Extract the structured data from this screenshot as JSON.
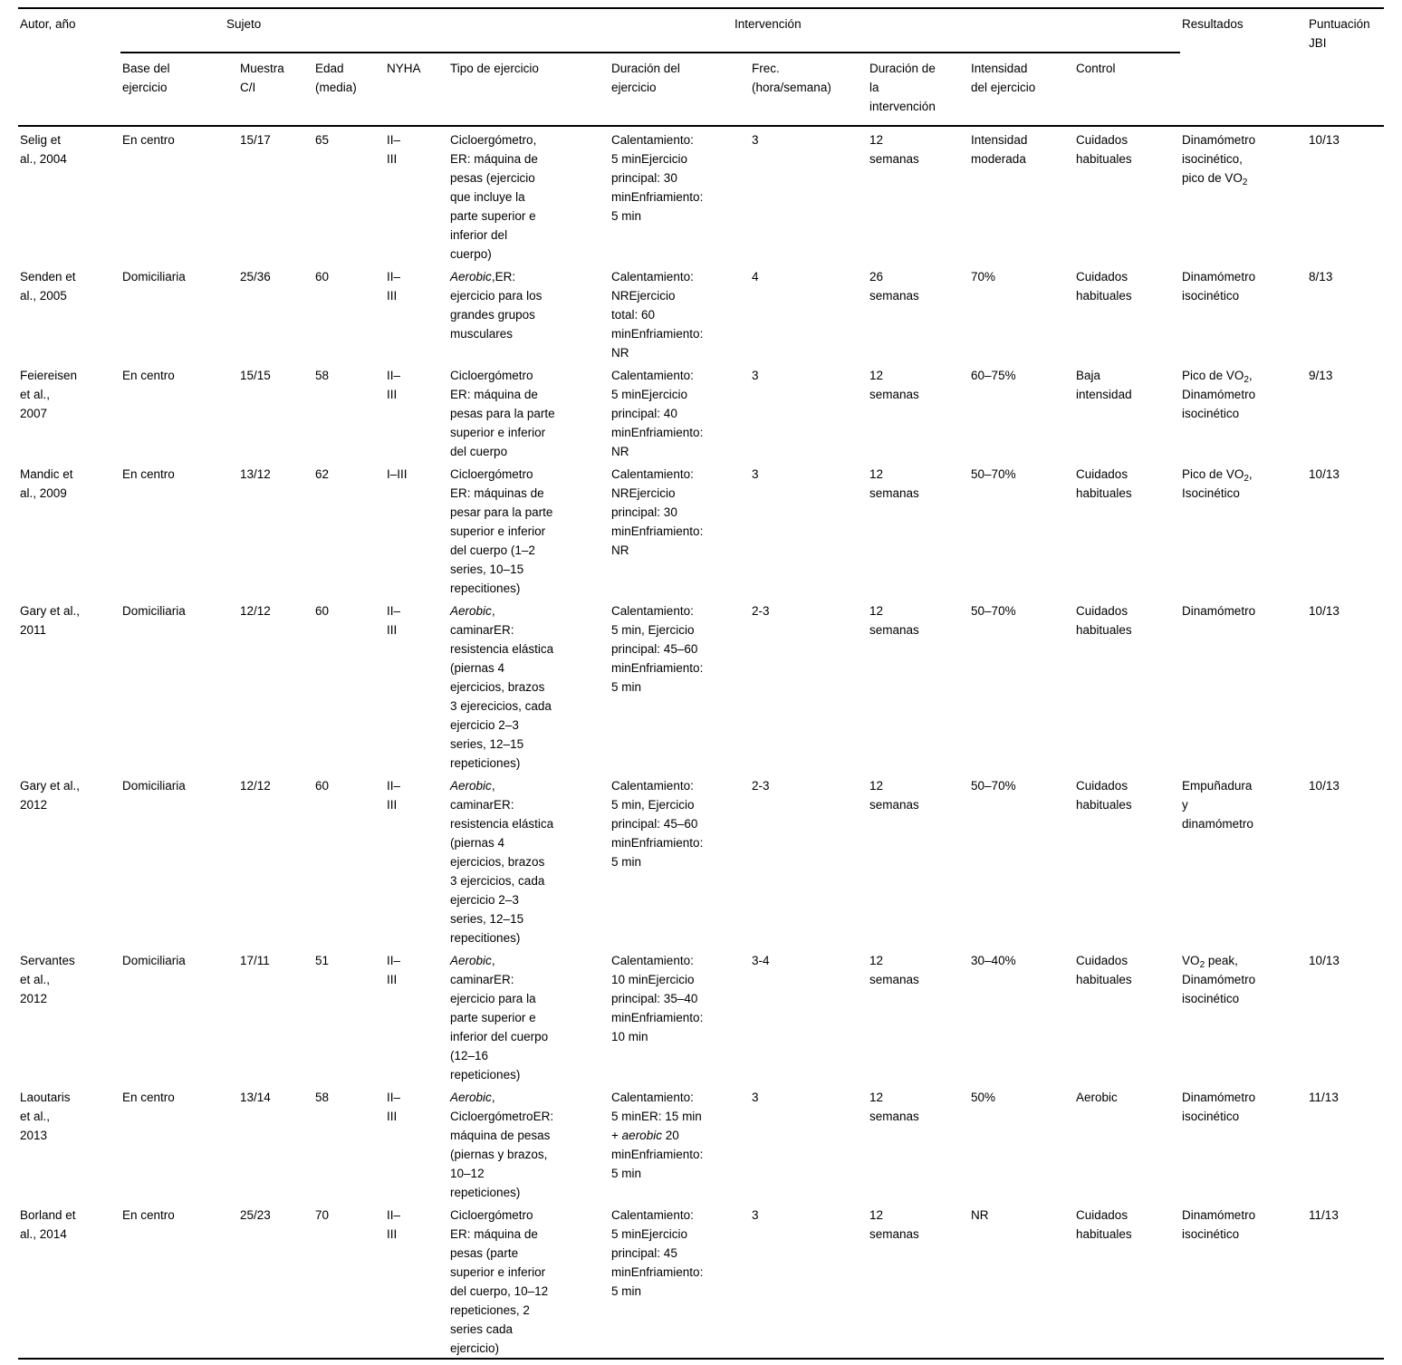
{
  "table": {
    "header": {
      "author": "Autor, año",
      "sujeto_group": "Sujeto",
      "intervencion_group": "Intervención",
      "resultados": "Resultados",
      "jbi": "Puntuación\nJBI",
      "sub": [
        "Base del\nejercicio",
        "Muestra\nC/I",
        "Edad\n(media)",
        "NYHA",
        "Tipo de ejercicio",
        "Duración del\nejercicio",
        "Frec.\n(hora/semana)",
        "Duración de\nla\nintervención",
        "Intensidad\ndel ejercicio",
        "Control"
      ]
    },
    "rows": [
      {
        "author": "Selig et\nal., 2004",
        "base": "En centro",
        "muestra": "15/17",
        "edad": "65",
        "nyha": "II–\nIII",
        "tipo": "Cicloergómetro,\nER: máquina de\npesas (ejercicio\nque incluye la\nparte superior e\ninferior del\ncuerpo)",
        "duracion": "Calentamiento:\n5 minEjercicio\nprincipal: 30\nminEnfriamiento:\n5 min",
        "frec": "3",
        "duracion_intervencion": "12\nsemanas",
        "intensidad": "Intensidad\nmoderada",
        "control": "Cuidados\nhabituales",
        "resultados": [
          {
            "t": "Dinamómetro\nisocinético,\npico de VO"
          },
          {
            "t": "2",
            "sub": true
          }
        ],
        "jbi": "10/13"
      },
      {
        "author": "Senden et\nal., 2005",
        "base": "Domiciliaria",
        "muestra": "25/36",
        "edad": "60",
        "nyha": "II–\nIII",
        "tipo": [
          {
            "t": "Aerobic",
            "i": true
          },
          {
            "t": ",ER:\nejercicio para los\ngrandes grupos\nmusculares"
          }
        ],
        "duracion": "Calentamiento:\nNREjercicio\ntotal: 60\nminEnfriamiento:\nNR",
        "frec": "4",
        "duracion_intervencion": "26\nsemanas",
        "intensidad": "70%",
        "control": "Cuidados\nhabituales",
        "resultados": "Dinamómetro\nisocinético",
        "jbi": "8/13"
      },
      {
        "author": "Feiereisen\net al.,\n2007",
        "base": "En centro",
        "muestra": "15/15",
        "edad": "58",
        "nyha": "II–\nIII",
        "tipo": "Cicloergómetro\nER: máquina de\npesas para la parte\nsuperior e inferior\ndel cuerpo",
        "duracion": "Calentamiento:\n5 minEjercicio\nprincipal: 40\nminEnfriamiento:\nNR",
        "frec": "3",
        "duracion_intervencion": "12\nsemanas",
        "intensidad": "60–75%",
        "control": "Baja\nintensidad",
        "resultados": [
          {
            "t": "Pico de VO"
          },
          {
            "t": "2",
            "sub": true
          },
          {
            "t": ",\nDinamómetro\nisocinético"
          }
        ],
        "jbi": "9/13"
      },
      {
        "author": "Mandic et\nal., 2009",
        "base": "En centro",
        "muestra": "13/12",
        "edad": "62",
        "nyha": "I–III",
        "tipo": "Cicloergómetro\nER: máquinas de\npesar para la parte\nsuperior e inferior\ndel cuerpo (1–2\nseries, 10–15\nrepecitiones)",
        "duracion": "Calentamiento:\nNREjercicio\nprincipal: 30\nminEnfriamiento:\nNR",
        "frec": "3",
        "duracion_intervencion": "12\nsemanas",
        "intensidad": "50–70%",
        "control": "Cuidados\nhabituales",
        "resultados": [
          {
            "t": "Pico de VO"
          },
          {
            "t": "2",
            "sub": true
          },
          {
            "t": ",\nIsocinético"
          }
        ],
        "jbi": "10/13"
      },
      {
        "author": "Gary et al.,\n2011",
        "base": "Domiciliaria",
        "muestra": "12/12",
        "edad": "60",
        "nyha": "II–\nIII",
        "tipo": [
          {
            "t": "Aerobic",
            "i": true
          },
          {
            "t": ",\ncaminarER:\nresistencia elástica\n(piernas 4\nejercicios, brazos\n3 ejerecicios, cada\nejercicio 2–3\nseries, 12–15\nrepeticiones)"
          }
        ],
        "duracion": "Calentamiento:\n5 min, Ejercicio\nprincipal: 45–60\nminEnfriamiento:\n5 min",
        "frec": "2-3",
        "duracion_intervencion": "12\nsemanas",
        "intensidad": "50–70%",
        "control": "Cuidados\nhabituales",
        "resultados": "Dinamómetro",
        "jbi": "10/13"
      },
      {
        "author": "Gary et al.,\n2012",
        "base": "Domiciliaria",
        "muestra": "12/12",
        "edad": "60",
        "nyha": "II–\nIII",
        "tipo": [
          {
            "t": "Aerobic",
            "i": true
          },
          {
            "t": ",\ncaminarER:\nresistencia elástica\n(piernas 4\nejercicios, brazos\n3 ejercicios, cada\nejercicio 2–3\nseries, 12–15\nrepecitiones)"
          }
        ],
        "duracion": "Calentamiento:\n5 min, Ejercicio\nprincipal: 45–60\nminEnfriamiento:\n5 min",
        "frec": "2-3",
        "duracion_intervencion": "12\nsemanas",
        "intensidad": "50–70%",
        "control": "Cuidados\nhabituales",
        "resultados": "Empuñadura\ny\ndinamómetro",
        "jbi": "10/13"
      },
      {
        "author": "Servantes\net al.,\n2012",
        "base": "Domiciliaria",
        "muestra": "17/11",
        "edad": "51",
        "nyha": "II–\nIII",
        "tipo": [
          {
            "t": "Aerobic",
            "i": true
          },
          {
            "t": ",\ncaminarER:\nejercicio para la\nparte superior e\ninferior del cuerpo\n(12–16\nrepeticiones)"
          }
        ],
        "duracion": "Calentamiento:\n10 minEjercicio\nprincipal: 35–40\nminEnfriamiento:\n10 min",
        "frec": "3-4",
        "duracion_intervencion": "12\nsemanas",
        "intensidad": "30–40%",
        "control": "Cuidados\nhabituales",
        "resultados": [
          {
            "t": "VO"
          },
          {
            "t": "2",
            "sub": true
          },
          {
            "t": " peak,\nDinamómetro\nisocinético"
          }
        ],
        "jbi": "10/13"
      },
      {
        "author": "Laoutaris\net al.,\n2013",
        "base": "En centro",
        "muestra": "13/14",
        "edad": "58",
        "nyha": "II–\nIII",
        "tipo": [
          {
            "t": "Aerobic",
            "i": true
          },
          {
            "t": ",\nCicloergómetroER:\nmáquina de pesas\n(piernas y brazos,\n10–12\nrepeticiones)"
          }
        ],
        "duracion": [
          {
            "t": "Calentamiento:\n5 minER: 15 min\n+ "
          },
          {
            "t": "aerobic",
            "i": true
          },
          {
            "t": " 20\nminEnfriamiento:\n5 min"
          }
        ],
        "frec": "3",
        "duracion_intervencion": "12\nsemanas",
        "intensidad": "50%",
        "control": "Aerobic",
        "resultados": "Dinamómetro\nisocinético",
        "jbi": "11/13"
      },
      {
        "author": "Borland et\nal., 2014",
        "base": "En centro",
        "muestra": "25/23",
        "edad": "70",
        "nyha": "II–\nIII",
        "tipo": "Cicloergómetro\nER: máquina de\npesas (parte\nsuperior e inferior\ndel cuerpo, 10–12\nrepeticiones, 2\nseries cada\nejercicio)",
        "duracion": "Calentamiento:\n5 minEjercicio\nprincipal: 45\nminEnfriamiento:\n5 min",
        "frec": "3",
        "duracion_intervencion": "12\nsemanas",
        "intensidad": "NR",
        "control": "Cuidados\nhabituales",
        "resultados": "Dinamómetro\nisocinético",
        "jbi": "11/13"
      }
    ]
  }
}
